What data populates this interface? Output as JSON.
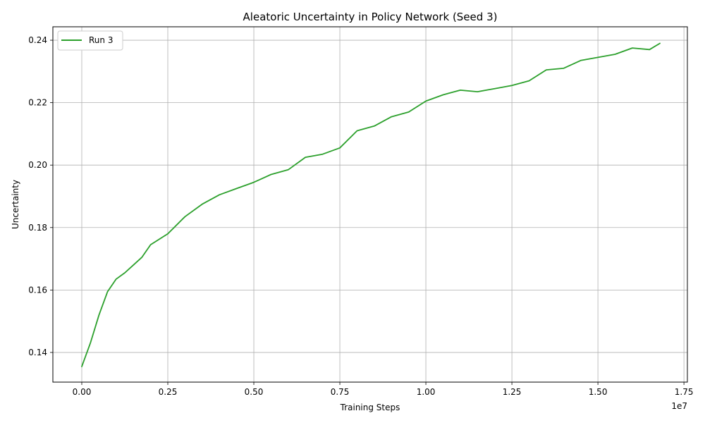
{
  "chart_data": {
    "type": "line",
    "title": "Aleatoric Uncertainty in Policy Network (Seed 3)",
    "xlabel": "Training Steps",
    "ylabel": "Uncertainty",
    "x_offset_label": "1e7",
    "xlim": [
      -0.084,
      1.76
    ],
    "ylim": [
      0.1305,
      0.2443
    ],
    "x_ticks": [
      0.0,
      0.25,
      0.5,
      0.75,
      1.0,
      1.25,
      1.5,
      1.75
    ],
    "x_tick_labels": [
      "0.00",
      "0.25",
      "0.50",
      "0.75",
      "1.00",
      "1.25",
      "1.50",
      "1.75"
    ],
    "y_ticks": [
      0.14,
      0.16,
      0.18,
      0.2,
      0.22,
      0.24
    ],
    "y_tick_labels": [
      "0.14",
      "0.16",
      "0.18",
      "0.20",
      "0.22",
      "0.24"
    ],
    "grid": true,
    "legend_position": "top-left",
    "series": [
      {
        "name": "Run 3",
        "color": "#2ca02c",
        "x_scale_note": "x values in units of 1e7 training steps",
        "x": [
          0.0,
          0.025,
          0.05,
          0.075,
          0.1,
          0.125,
          0.15,
          0.175,
          0.2,
          0.25,
          0.3,
          0.35,
          0.4,
          0.45,
          0.5,
          0.55,
          0.6,
          0.65,
          0.7,
          0.75,
          0.8,
          0.85,
          0.9,
          0.95,
          1.0,
          1.05,
          1.1,
          1.15,
          1.2,
          1.25,
          1.3,
          1.35,
          1.4,
          1.45,
          1.5,
          1.55,
          1.6,
          1.65,
          1.68
        ],
        "y": [
          0.1355,
          0.143,
          0.152,
          0.1595,
          0.1635,
          0.1655,
          0.168,
          0.1705,
          0.1745,
          0.178,
          0.1835,
          0.1875,
          0.1905,
          0.1925,
          0.1945,
          0.197,
          0.1985,
          0.2025,
          0.2035,
          0.2055,
          0.211,
          0.2125,
          0.2155,
          0.217,
          0.2205,
          0.2225,
          0.224,
          0.2235,
          0.2245,
          0.2255,
          0.227,
          0.2305,
          0.231,
          0.2335,
          0.2345,
          0.2355,
          0.2375,
          0.237,
          0.239
        ]
      }
    ]
  }
}
